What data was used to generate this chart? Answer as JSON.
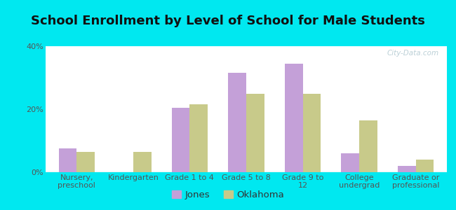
{
  "title": "School Enrollment by Level of School for Male Students",
  "categories": [
    "Nursery,\npreschool",
    "Kindergarten",
    "Grade 1 to 4",
    "Grade 5 to 8",
    "Grade 9 to\n12",
    "College\nundergrad",
    "Graduate or\nprofessional"
  ],
  "jones_values": [
    7.5,
    0,
    20.5,
    31.5,
    34.5,
    6.0,
    2.0
  ],
  "oklahoma_values": [
    6.5,
    6.5,
    21.5,
    25.0,
    25.0,
    16.5,
    4.0
  ],
  "jones_color": "#c4a0d8",
  "oklahoma_color": "#c8ca8a",
  "background_color": "#00e8f0",
  "ylim": [
    0,
    40
  ],
  "yticks": [
    0,
    20,
    40
  ],
  "ytick_labels": [
    "0%",
    "20%",
    "40%"
  ],
  "bar_width": 0.32,
  "legend_labels": [
    "Jones",
    "Oklahoma"
  ],
  "title_fontsize": 13,
  "tick_fontsize": 8.0,
  "legend_fontsize": 9.5,
  "watermark": "City-Data.com"
}
